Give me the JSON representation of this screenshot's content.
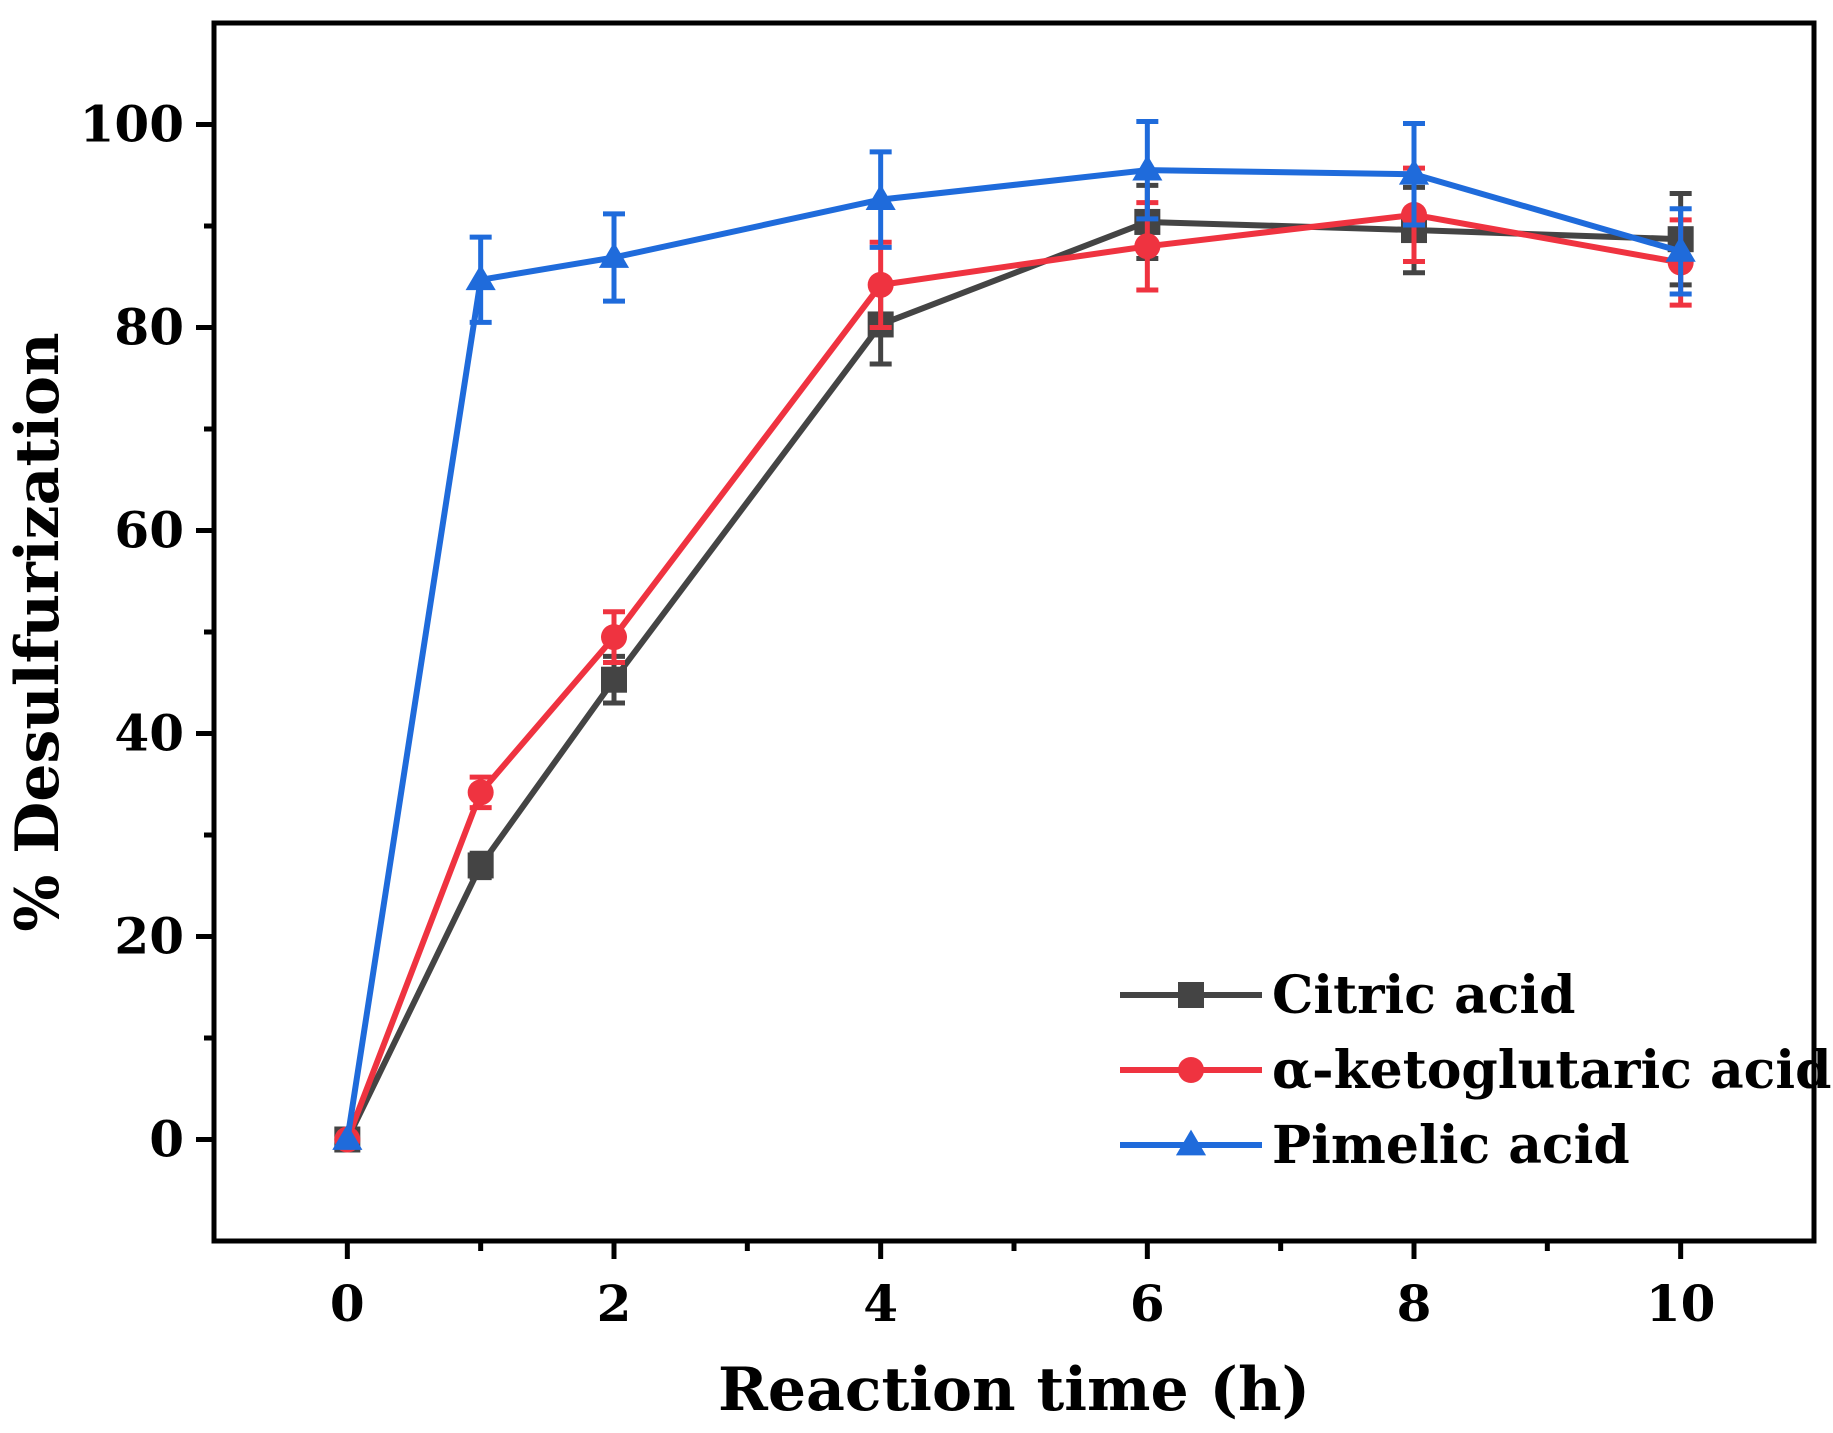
{
  "chart_data": {
    "type": "line",
    "xlabel": "Reaction time (h)",
    "ylabel": "% Desulfurization",
    "xlim": [
      -1,
      11
    ],
    "ylim": [
      -10,
      110
    ],
    "xticks": [
      0,
      2,
      4,
      6,
      8,
      10
    ],
    "yticks": [
      0,
      20,
      40,
      60,
      80,
      100
    ],
    "x_minor": [
      1,
      3,
      5,
      7,
      9
    ],
    "y_minor": [
      10,
      30,
      50,
      70,
      90
    ],
    "grid": false,
    "legend_position": "bottom-right",
    "series": [
      {
        "name": "Citric acid",
        "color": "#444444",
        "marker": "square",
        "x": [
          0,
          1,
          2,
          4,
          6,
          8,
          10
        ],
        "y": [
          0,
          27,
          45.3,
          80.3,
          90.4,
          89.6,
          88.7
        ],
        "err": [
          0,
          1.2,
          2.3,
          3.9,
          3.6,
          4.2,
          4.5
        ]
      },
      {
        "name": "α-ketoglutaric acid",
        "color": "#ef3340",
        "marker": "circle",
        "x": [
          0,
          1,
          2,
          4,
          6,
          8,
          10
        ],
        "y": [
          0,
          34.2,
          49.5,
          84.2,
          88,
          91.1,
          86.4
        ],
        "err": [
          0,
          1.5,
          2.5,
          4.2,
          4.3,
          4.6,
          4.2
        ]
      },
      {
        "name": "Pimelic acid",
        "color": "#1f6bdb",
        "marker": "triangle",
        "x": [
          0,
          1,
          2,
          4,
          6,
          8,
          10
        ],
        "y": [
          0,
          84.7,
          86.9,
          92.6,
          95.5,
          95.1,
          87.5
        ],
        "err": [
          0,
          4.2,
          4.3,
          4.7,
          4.8,
          5,
          4.2
        ]
      }
    ]
  }
}
